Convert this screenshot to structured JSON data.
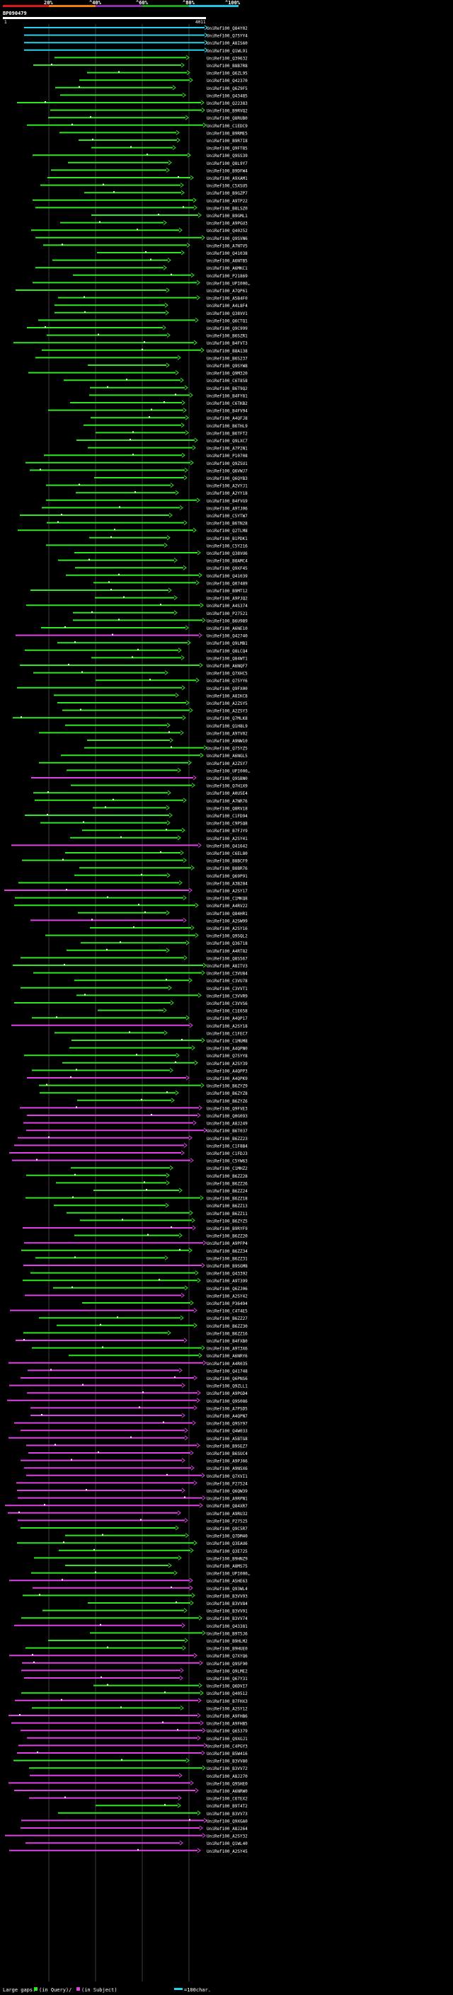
{
  "scale": {
    "labels": [
      "20%",
      "^40%",
      "^60%",
      "^80%",
      "^100%"
    ],
    "colors": [
      "#e01616",
      "#ee7d12",
      "#8a2fb0",
      "#1aa51a",
      "#1ec6e6"
    ]
  },
  "query": {
    "id": "BP090479",
    "start_label": "1",
    "end_label": "4011"
  },
  "colors": {
    "cyan": "#22d3ee",
    "green": "#2ee81f",
    "magenta": "#e040e6",
    "guide": "#3c3c3c",
    "gap": "#0b4d12"
  },
  "hits": [
    {
      "id": "UniRef100_Q84Y02",
      "c": "cyan"
    },
    {
      "id": "UniRef100_Q75YY4",
      "c": "cyan"
    },
    {
      "id": "UniRef100_A8IS60",
      "c": "cyan"
    },
    {
      "id": "UniRef100_Q1WL91",
      "c": "cyan"
    },
    {
      "id": "UniRef100_Q39632",
      "c": "green"
    },
    {
      "id": "UniRef100_B8B7R8",
      "c": "green"
    },
    {
      "id": "UniRef100_Q6ZL95",
      "c": "green"
    },
    {
      "id": "UniRef100_Q42370",
      "c": "green"
    },
    {
      "id": "UniRef100_Q6Z9F5",
      "c": "green"
    },
    {
      "id": "UniRef100_Q43485",
      "c": "green"
    },
    {
      "id": "UniRef100_Q22383",
      "c": "green"
    },
    {
      "id": "UniRef100_B9RVQ2",
      "c": "green"
    },
    {
      "id": "UniRef100_Q8RUB0",
      "c": "green"
    },
    {
      "id": "UniRef100_C1EDC9",
      "c": "green"
    },
    {
      "id": "UniRef100_B9RME5",
      "c": "green"
    },
    {
      "id": "UniRef100_B9R7I8",
      "c": "green"
    },
    {
      "id": "UniRef100_Q9FT85",
      "c": "green"
    },
    {
      "id": "UniRef100_Q9SS39",
      "c": "green"
    },
    {
      "id": "UniRef100_Q8L9Y7",
      "c": "green"
    },
    {
      "id": "UniRef100_B9DFW4",
      "c": "green"
    },
    {
      "id": "UniRef100_A9XAM1",
      "c": "green"
    },
    {
      "id": "UniRef100_C5XSU5",
      "c": "green"
    },
    {
      "id": "UniRef100_B9GZP7",
      "c": "green"
    },
    {
      "id": "UniRef100_A9TP22",
      "c": "green"
    },
    {
      "id": "UniRef100_B8LSZ0",
      "c": "green"
    },
    {
      "id": "UniRef100_B9GML1",
      "c": "green"
    },
    {
      "id": "UniRef100_A9PGU3",
      "c": "green"
    },
    {
      "id": "UniRef100_Q40252",
      "c": "green"
    },
    {
      "id": "UniRef100_Q9SVN6",
      "c": "green"
    },
    {
      "id": "UniRef100_A7NTV5",
      "c": "green"
    },
    {
      "id": "UniRef100_Q41038",
      "c": "green"
    },
    {
      "id": "UniRef100_A6NTB5",
      "c": "green"
    },
    {
      "id": "UniRef100_A6MKC1",
      "c": "green"
    },
    {
      "id": "UniRef100_P21869",
      "c": "green"
    },
    {
      "id": "UniRef100_UPI000…",
      "c": "green"
    },
    {
      "id": "UniRef100_A7QP61",
      "c": "green"
    },
    {
      "id": "UniRef100_A5B4F0",
      "c": "green"
    },
    {
      "id": "UniRef100_A4L8F4",
      "c": "green"
    },
    {
      "id": "UniRef100_Q38VV1",
      "c": "green"
    },
    {
      "id": "UniRef100_Q6CTQ1",
      "c": "green"
    },
    {
      "id": "UniRef100_Q9C999",
      "c": "green"
    },
    {
      "id": "UniRef100_B6SZR1",
      "c": "green"
    },
    {
      "id": "UniRef100_B4FVT3",
      "c": "green"
    },
    {
      "id": "UniRef100_B8A138",
      "c": "green"
    },
    {
      "id": "UniRef100_B6S237",
      "c": "green"
    },
    {
      "id": "UniRef100_Q9SYW8",
      "c": "green"
    },
    {
      "id": "UniRef100_Q9M320",
      "c": "green"
    },
    {
      "id": "UniRef100_C6T858",
      "c": "green"
    },
    {
      "id": "UniRef100_B6T9Q2",
      "c": "green"
    },
    {
      "id": "UniRef100_B4FY81",
      "c": "green"
    },
    {
      "id": "UniRef100_C6TKB2",
      "c": "green"
    },
    {
      "id": "UniRef100_B4FV94",
      "c": "green"
    },
    {
      "id": "UniRef100_A4QFJ8",
      "c": "green"
    },
    {
      "id": "UniRef100_B6THL9",
      "c": "green"
    },
    {
      "id": "UniRef100_B6TFT2",
      "c": "green"
    },
    {
      "id": "UniRef100_Q9LXC7",
      "c": "green"
    },
    {
      "id": "UniRef100_A7P2N1",
      "c": "green"
    },
    {
      "id": "UniRef100_P10708",
      "c": "green"
    },
    {
      "id": "UniRef100_Q9ZSU1",
      "c": "green"
    },
    {
      "id": "UniRef100_Q6VWJ7",
      "c": "green"
    },
    {
      "id": "UniRef100_Q6QYB3",
      "c": "green"
    },
    {
      "id": "UniRef100_A2VYJ1",
      "c": "green"
    },
    {
      "id": "UniRef100_A2YY18",
      "c": "green"
    },
    {
      "id": "UniRef100_B4FVG9",
      "c": "green"
    },
    {
      "id": "UniRef100_A9TJ06",
      "c": "green"
    },
    {
      "id": "UniRef100_C5YTW7",
      "c": "green"
    },
    {
      "id": "UniRef100_B6TN28",
      "c": "green"
    },
    {
      "id": "UniRef100_Q2TLM8",
      "c": "green"
    },
    {
      "id": "UniRef100_B1PDK1",
      "c": "green"
    },
    {
      "id": "UniRef100_C5Y216",
      "c": "green"
    },
    {
      "id": "UniRef100_Q38VU6",
      "c": "green"
    },
    {
      "id": "UniRef100_B8AMC4",
      "c": "green"
    },
    {
      "id": "UniRef100_Q9XF45",
      "c": "green"
    },
    {
      "id": "UniRef100_Q41039",
      "c": "green"
    },
    {
      "id": "UniRef100_Q07489",
      "c": "green"
    },
    {
      "id": "UniRef100_B9MT12",
      "c": "green"
    },
    {
      "id": "UniRef100_A9PJQ2",
      "c": "green"
    },
    {
      "id": "UniRef100_A4S374",
      "c": "green"
    },
    {
      "id": "UniRef100_P27521",
      "c": "green"
    },
    {
      "id": "UniRef100_B6U9B9",
      "c": "green"
    },
    {
      "id": "UniRef100_A6NE10",
      "c": "green"
    },
    {
      "id": "UniRef100_Q42740",
      "c": "magenta"
    },
    {
      "id": "UniRef100_Q9LMB1",
      "c": "green"
    },
    {
      "id": "UniRef100_Q8LCQ4",
      "c": "green"
    },
    {
      "id": "UniRef100_Q84WT1",
      "c": "green"
    },
    {
      "id": "UniRef100_A6NQF7",
      "c": "green"
    },
    {
      "id": "UniRef100_Q7XHC5",
      "c": "green"
    },
    {
      "id": "UniRef100_Q75YY6",
      "c": "green"
    },
    {
      "id": "UniRef100_Q9FX00",
      "c": "green"
    },
    {
      "id": "UniRef100_A8IKC8",
      "c": "green"
    },
    {
      "id": "UniRef100_A2ZSY5",
      "c": "green"
    },
    {
      "id": "UniRef100_A2ZSY3",
      "c": "green"
    },
    {
      "id": "UniRef100_Q7MLK8",
      "c": "green"
    },
    {
      "id": "UniRef100_Q1H8L9",
      "c": "green"
    },
    {
      "id": "UniRef100_A9TV02",
      "c": "green"
    },
    {
      "id": "UniRef100_A9NW10",
      "c": "green"
    },
    {
      "id": "UniRef100_Q75YZ5",
      "c": "green"
    },
    {
      "id": "UniRef100_A6NGL5",
      "c": "green"
    },
    {
      "id": "UniRef100_A2ZSY7",
      "c": "green"
    },
    {
      "id": "UniRef100_UPI000…",
      "c": "green"
    },
    {
      "id": "UniRef100_Q9SBN0",
      "c": "magenta"
    },
    {
      "id": "UniRef100_Q7H1X9",
      "c": "green"
    },
    {
      "id": "UniRef100_A0U5E4",
      "c": "green"
    },
    {
      "id": "UniRef100_A7NR76",
      "c": "green"
    },
    {
      "id": "UniRef100_Q8RV18",
      "c": "green"
    },
    {
      "id": "UniRef100_C1FD94",
      "c": "green"
    },
    {
      "id": "UniRef100_C9PSQ8",
      "c": "green"
    },
    {
      "id": "UniRef100_B7FJY9",
      "c": "green"
    },
    {
      "id": "UniRef100_A2SY41",
      "c": "green"
    },
    {
      "id": "UniRef100_Q41642",
      "c": "magenta"
    },
    {
      "id": "UniRef100_C6EL80",
      "c": "green"
    },
    {
      "id": "UniRef100_B8BCF9",
      "c": "green"
    },
    {
      "id": "UniRef100_B8BR76",
      "c": "green"
    },
    {
      "id": "UniRef100_Q69P91",
      "c": "green"
    },
    {
      "id": "UniRef100_A3B284",
      "c": "green"
    },
    {
      "id": "UniRef100_A2SY17",
      "c": "magenta"
    },
    {
      "id": "UniRef100_C1MKQ8",
      "c": "green"
    },
    {
      "id": "UniRef100_A4RV22",
      "c": "green"
    },
    {
      "id": "UniRef100_Q84HR1",
      "c": "green"
    },
    {
      "id": "UniRef100_A2SW99",
      "c": "magenta"
    },
    {
      "id": "UniRef100_A2SY16",
      "c": "green"
    },
    {
      "id": "UniRef100_Q9SQL2",
      "c": "green"
    },
    {
      "id": "UniRef100_Q36718",
      "c": "green"
    },
    {
      "id": "UniRef100_A4RT82",
      "c": "green"
    },
    {
      "id": "UniRef100_Q8S567",
      "c": "green"
    },
    {
      "id": "UniRef100_A8ITV3",
      "c": "green"
    },
    {
      "id": "UniRef100_C3VU84",
      "c": "green"
    },
    {
      "id": "UniRef100_C3VU78",
      "c": "green"
    },
    {
      "id": "UniRef100_C3VVT1",
      "c": "green"
    },
    {
      "id": "UniRef100_C3VVR9",
      "c": "green"
    },
    {
      "id": "UniRef100_C3VVS6",
      "c": "green"
    },
    {
      "id": "UniRef100_C1E658",
      "c": "green"
    },
    {
      "id": "UniRef100_A4QP17",
      "c": "green"
    },
    {
      "id": "UniRef100_A2SY18",
      "c": "magenta"
    },
    {
      "id": "UniRef100_C1FEC7",
      "c": "green"
    },
    {
      "id": "UniRef100_C1MUM8",
      "c": "green"
    },
    {
      "id": "UniRef100_A4QPN0",
      "c": "green"
    },
    {
      "id": "UniRef100_Q75YY8",
      "c": "green"
    },
    {
      "id": "UniRef100_A2SY39",
      "c": "green"
    },
    {
      "id": "UniRef100_A4QPP3",
      "c": "green"
    },
    {
      "id": "UniRef100_A4QPK9",
      "c": "magenta"
    },
    {
      "id": "UniRef100_B6ZYZ9",
      "c": "green"
    },
    {
      "id": "UniRef100_B6ZYZ8",
      "c": "green"
    },
    {
      "id": "UniRef100_B6ZYZ6",
      "c": "green"
    },
    {
      "id": "UniRef100_Q9FVE3",
      "c": "magenta"
    },
    {
      "id": "UniRef100_Q0G093",
      "c": "magenta"
    },
    {
      "id": "UniRef100_A8J249",
      "c": "magenta"
    },
    {
      "id": "UniRef100_B6T037",
      "c": "magenta"
    },
    {
      "id": "UniRef100_B6ZZ23",
      "c": "magenta"
    },
    {
      "id": "UniRef100_C1F8B4",
      "c": "magenta"
    },
    {
      "id": "UniRef100_C1FDJ3",
      "c": "magenta"
    },
    {
      "id": "UniRef100_C5YW63",
      "c": "magenta"
    },
    {
      "id": "UniRef100_C1MHZ2",
      "c": "green"
    },
    {
      "id": "UniRef100_B6ZZ28",
      "c": "green"
    },
    {
      "id": "UniRef100_B6ZZ26",
      "c": "green"
    },
    {
      "id": "UniRef100_B6ZZ24",
      "c": "green"
    },
    {
      "id": "UniRef100_B6ZZ18",
      "c": "green"
    },
    {
      "id": "UniRef100_B6ZZ13",
      "c": "green"
    },
    {
      "id": "UniRef100_B6ZZ11",
      "c": "green"
    },
    {
      "id": "UniRef100_B6ZYZ5",
      "c": "green"
    },
    {
      "id": "UniRef100_B9RYF9",
      "c": "magenta"
    },
    {
      "id": "UniRef100_B6ZZ20",
      "c": "green"
    },
    {
      "id": "UniRef100_A9PFP4",
      "c": "magenta"
    },
    {
      "id": "UniRef100_B6ZZ34",
      "c": "green"
    },
    {
      "id": "UniRef100_B6ZZ31",
      "c": "green"
    },
    {
      "id": "UniRef100_B9SGM8",
      "c": "magenta"
    },
    {
      "id": "UniRef100_Q43392",
      "c": "green"
    },
    {
      "id": "UniRef100_A9T399",
      "c": "green"
    },
    {
      "id": "UniRef100_Q6ZJ06",
      "c": "green"
    },
    {
      "id": "UniRef100_A2SY42",
      "c": "magenta"
    },
    {
      "id": "UniRef100_P36494",
      "c": "green"
    },
    {
      "id": "UniRef100_C4T4E5",
      "c": "magenta"
    },
    {
      "id": "UniRef100_B6ZZ27",
      "c": "green"
    },
    {
      "id": "UniRef100_B6ZZ30",
      "c": "green"
    },
    {
      "id": "UniRef100_B6ZZ16",
      "c": "green"
    },
    {
      "id": "UniRef100_B4FXB0",
      "c": "magenta"
    },
    {
      "id": "UniRef100_A9T3X6",
      "c": "green"
    },
    {
      "id": "UniRef100_A6NRY6",
      "c": "green"
    },
    {
      "id": "UniRef100_A4R035",
      "c": "magenta"
    },
    {
      "id": "UniRef100_Q41748",
      "c": "magenta"
    },
    {
      "id": "UniRef100_Q6PNS6",
      "c": "magenta"
    },
    {
      "id": "UniRef100_Q9ZLL1",
      "c": "magenta"
    },
    {
      "id": "UniRef100_A9PGD4",
      "c": "magenta"
    },
    {
      "id": "UniRef100_Q9S086",
      "c": "magenta"
    },
    {
      "id": "UniRef100_A7PSD5",
      "c": "magenta"
    },
    {
      "id": "UniRef100_A4QPN7",
      "c": "magenta"
    },
    {
      "id": "UniRef100_Q9SY97",
      "c": "magenta"
    },
    {
      "id": "UniRef100_Q4W033",
      "c": "magenta"
    },
    {
      "id": "UniRef100_A5BTG8",
      "c": "magenta"
    },
    {
      "id": "UniRef100_B9SEZ7",
      "c": "magenta"
    },
    {
      "id": "UniRef100_B6SUC4",
      "c": "magenta"
    },
    {
      "id": "UniRef100_A9PJ66",
      "c": "magenta"
    },
    {
      "id": "UniRef100_A9NSX6",
      "c": "magenta"
    },
    {
      "id": "UniRef100_Q7XVI1",
      "c": "magenta"
    },
    {
      "id": "UniRef100_P27524",
      "c": "magenta"
    },
    {
      "id": "UniRef100_Q6QW39",
      "c": "magenta"
    },
    {
      "id": "UniRef100_A9RPN1",
      "c": "magenta"
    },
    {
      "id": "UniRef100_Q84XR7",
      "c": "magenta"
    },
    {
      "id": "UniRef100_A9RU32",
      "c": "magenta"
    },
    {
      "id": "UniRef100_P27525",
      "c": "magenta"
    },
    {
      "id": "UniRef100_Q9C5R7",
      "c": "green"
    },
    {
      "id": "UniRef100_Q7DM40",
      "c": "green"
    },
    {
      "id": "UniRef100_Q3EAU6",
      "c": "green"
    },
    {
      "id": "UniRef100_Q3E725",
      "c": "green"
    },
    {
      "id": "UniRef100_B9HNZ9",
      "c": "green"
    },
    {
      "id": "UniRef100_A8MS75",
      "c": "green"
    },
    {
      "id": "UniRef100_UPI000…",
      "c": "green"
    },
    {
      "id": "UniRef100_A5HE63",
      "c": "magenta"
    },
    {
      "id": "UniRef100_Q93WL4",
      "c": "magenta"
    },
    {
      "id": "UniRef100_B3VV93",
      "c": "green"
    },
    {
      "id": "UniRef100_B3VV84",
      "c": "green"
    },
    {
      "id": "UniRef100_B3VV91",
      "c": "green"
    },
    {
      "id": "UniRef100_B3VV74",
      "c": "green"
    },
    {
      "id": "UniRef100_Q43381",
      "c": "magenta"
    },
    {
      "id": "UniRef100_B9T5J6",
      "c": "green"
    },
    {
      "id": "UniRef100_B9HLM2",
      "c": "green"
    },
    {
      "id": "UniRef100_B9HUE0",
      "c": "green"
    },
    {
      "id": "UniRef100_Q7XYQ6",
      "c": "magenta"
    },
    {
      "id": "UniRef100_Q9SF90",
      "c": "magenta"
    },
    {
      "id": "UniRef100_Q9LME2",
      "c": "magenta"
    },
    {
      "id": "UniRef100_Q67Y31",
      "c": "magenta"
    },
    {
      "id": "UniRef100_Q6DVI7",
      "c": "green"
    },
    {
      "id": "UniRef100_Q40512",
      "c": "green"
    },
    {
      "id": "UniRef100_B7FHX3",
      "c": "magenta"
    },
    {
      "id": "UniRef100_A2SY12",
      "c": "green"
    },
    {
      "id": "UniRef100_A9FHB6",
      "c": "magenta"
    },
    {
      "id": "UniRef100_A9FHB5",
      "c": "magenta"
    },
    {
      "id": "UniRef100_Q65379",
      "c": "magenta"
    },
    {
      "id": "UniRef100_Q9XGJ1",
      "c": "magenta"
    },
    {
      "id": "UniRef100_C4PGY3",
      "c": "magenta"
    },
    {
      "id": "UniRef100_B5W416",
      "c": "magenta"
    },
    {
      "id": "UniRef100_B3VV80",
      "c": "green"
    },
    {
      "id": "UniRef100_B3VV72",
      "c": "green"
    },
    {
      "id": "UniRef100_A8J270",
      "c": "magenta"
    },
    {
      "id": "UniRef100_Q9SHE0",
      "c": "magenta"
    },
    {
      "id": "UniRef100_A6NRW0",
      "c": "magenta"
    },
    {
      "id": "UniRef100_C6TEX2",
      "c": "magenta"
    },
    {
      "id": "UniRef100_B9T4T2",
      "c": "green"
    },
    {
      "id": "UniRef100_B3VV73",
      "c": "green"
    },
    {
      "id": "UniRef100_Q9XGA0",
      "c": "magenta"
    },
    {
      "id": "UniRef100_A8J264",
      "c": "magenta"
    },
    {
      "id": "UniRef100_A2SY32",
      "c": "magenta"
    },
    {
      "id": "UniRef100_Q1WL40",
      "c": "magenta"
    },
    {
      "id": "UniRef100_A2SY45",
      "c": "magenta"
    }
  ],
  "legend": {
    "gaps_label": "Large gaps:",
    "query_text": "(in Query)/",
    "subject_text": "(in Subject)",
    "scale_text": "=100char."
  }
}
